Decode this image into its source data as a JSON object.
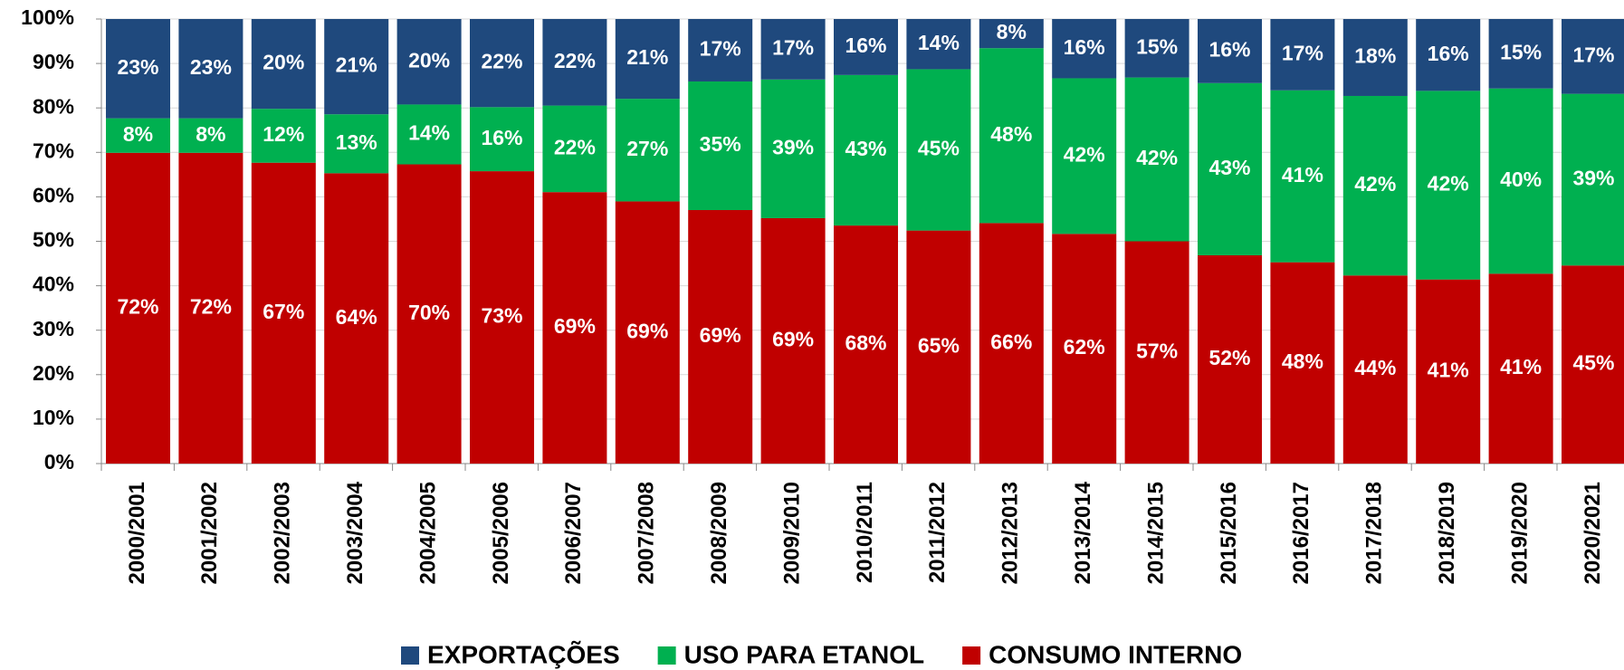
{
  "chart_data": {
    "type": "bar",
    "stacking": "percent",
    "categories": [
      "2000/2001",
      "2001/2002",
      "2002/2003",
      "2003/2004",
      "2004/2005",
      "2005/2006",
      "2006/2007",
      "2007/2008",
      "2008/2009",
      "2009/2010",
      "2010/2011",
      "2011/2012",
      "2012/2013",
      "2013/2014",
      "2014/2015",
      "2015/2016",
      "2016/2017",
      "2017/2018",
      "2018/2019",
      "2019/2020",
      "2020/2021"
    ],
    "series": [
      {
        "name": "CONSUMO INTERNO",
        "color": "#c00000",
        "values": [
          72,
          72,
          67,
          64,
          70,
          73,
          69,
          69,
          69,
          69,
          68,
          65,
          66,
          62,
          57,
          52,
          48,
          44,
          41,
          41,
          45
        ],
        "value_labels": [
          "72%",
          "72%",
          "67%",
          "64%",
          "70%",
          "73%",
          "69%",
          "69%",
          "69%",
          "69%",
          "68%",
          "65%",
          "66%",
          "62%",
          "57%",
          "52%",
          "48%",
          "44%",
          "41%",
          "41%",
          "45%"
        ]
      },
      {
        "name": "USO PARA ETANOL",
        "color": "#00b050",
        "values": [
          8,
          8,
          12,
          13,
          14,
          16,
          22,
          27,
          35,
          39,
          43,
          45,
          48,
          42,
          42,
          43,
          41,
          42,
          42,
          40,
          39
        ],
        "value_labels": [
          "8%",
          "8%",
          "12%",
          "13%",
          "14%",
          "16%",
          "22%",
          "27%",
          "35%",
          "39%",
          "43%",
          "45%",
          "48%",
          "42%",
          "42%",
          "43%",
          "41%",
          "42%",
          "42%",
          "40%",
          "39%"
        ]
      },
      {
        "name": "EXPORTAÇÕES",
        "color": "#1f497d",
        "values": [
          23,
          23,
          20,
          21,
          20,
          22,
          22,
          21,
          17,
          17,
          16,
          14,
          8,
          16,
          15,
          16,
          17,
          18,
          16,
          15,
          17
        ],
        "value_labels": [
          "23%",
          "23%",
          "20%",
          "21%",
          "20%",
          "22%",
          "22%",
          "21%",
          "17%",
          "17%",
          "16%",
          "14%",
          "8%",
          "16%",
          "15%",
          "16%",
          "17%",
          "18%",
          "16%",
          "15%",
          "17%"
        ]
      }
    ],
    "ylim": [
      0,
      100
    ],
    "yticks": [
      {
        "value": 0,
        "label": "0%"
      },
      {
        "value": 10,
        "label": "10%"
      },
      {
        "value": 20,
        "label": "20%"
      },
      {
        "value": 30,
        "label": "30%"
      },
      {
        "value": 40,
        "label": "40%"
      },
      {
        "value": 50,
        "label": "50%"
      },
      {
        "value": 60,
        "label": "60%"
      },
      {
        "value": 70,
        "label": "70%"
      },
      {
        "value": 80,
        "label": "80%"
      },
      {
        "value": 90,
        "label": "90%"
      },
      {
        "value": 100,
        "label": "100%"
      }
    ],
    "grid": true
  }
}
